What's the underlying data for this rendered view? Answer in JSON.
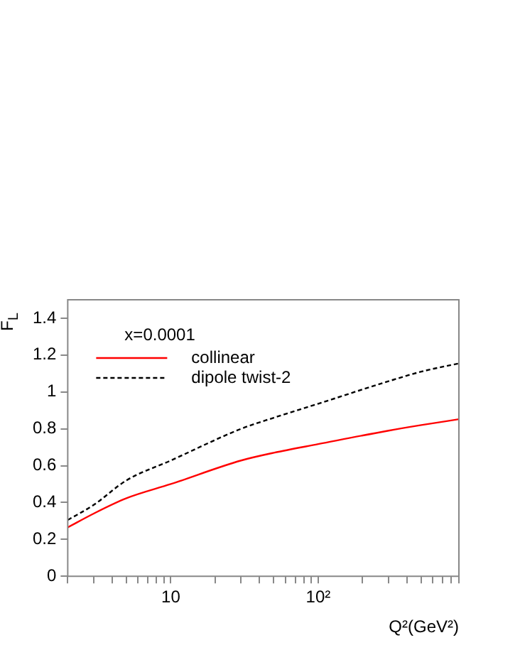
{
  "chart_data": {
    "type": "line",
    "xlabel": "Q²(GeV²)",
    "ylabel": "F$_{L}$",
    "legend_title": "x=0.0001",
    "legend": "top left",
    "log": "x",
    "marker": "none",
    "xlim": [
      2,
      900
    ],
    "xticks": [
      {
        "value": 2,
        "label": null
      },
      {
        "value": 3,
        "label": null
      },
      {
        "value": 4,
        "label": null
      },
      {
        "value": 5,
        "label": null
      },
      {
        "value": 6,
        "label": null
      },
      {
        "value": 7,
        "label": null
      },
      {
        "value": 8,
        "label": null
      },
      {
        "value": 9,
        "label": null
      },
      10,
      {
        "value": 20,
        "label": null
      },
      {
        "value": 30,
        "label": null
      },
      {
        "value": 40,
        "label": null
      },
      {
        "value": 50,
        "label": null
      },
      {
        "value": 60,
        "label": null
      },
      {
        "value": 70,
        "label": null
      },
      {
        "value": 80,
        "label": null
      },
      {
        "value": 90,
        "label": null
      },
      {
        "value": 100,
        "label": "10²"
      },
      {
        "value": 200,
        "label": null
      },
      {
        "value": 300,
        "label": null
      },
      {
        "value": 400,
        "label": null
      },
      {
        "value": 500,
        "label": null
      },
      {
        "value": 600,
        "label": null
      },
      {
        "value": 700,
        "label": null
      },
      {
        "value": 800,
        "label": null
      },
      {
        "value": 900,
        "label": null
      }
    ],
    "ylim": [
      0,
      1.5
    ],
    "yticks": [
      0,
      0.2,
      0.4,
      0.6,
      0.8,
      1,
      1.2,
      1.4
    ],
    "x": [
      2,
      3,
      5,
      10,
      30,
      50,
      100,
      300,
      500,
      900
    ],
    "series": [
      {
        "name": "collinear",
        "color": "#ff0000",
        "line_style": "solid",
        "values": [
          0.265,
          0.34,
          0.423,
          0.5,
          0.628,
          0.67,
          0.717,
          0.79,
          0.82,
          0.852
        ]
      },
      {
        "name": "dipole twist-2",
        "color": "#000000",
        "line_style": "dashed",
        "values": [
          0.305,
          0.387,
          0.52,
          0.628,
          0.8,
          0.86,
          0.936,
          1.058,
          1.11,
          1.155
        ]
      }
    ]
  }
}
